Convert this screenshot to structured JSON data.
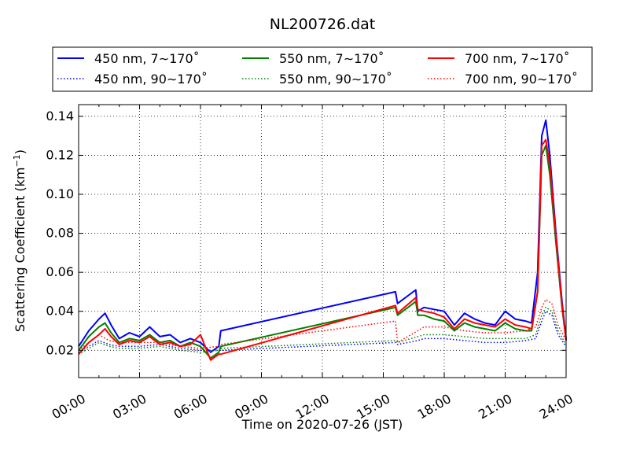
{
  "chart_data": {
    "type": "line",
    "title": "NL200726.dat",
    "xlabel": "Time on 2020-07-26 (JST)",
    "ylabel_main": "Scattering Coefficient (km",
    "ylabel_sup": "−1",
    "ylabel_end": ")",
    "xlim": [
      0,
      24
    ],
    "ylim": [
      0.006,
      0.146
    ],
    "xticks": [
      0,
      3,
      6,
      9,
      12,
      15,
      18,
      21,
      24
    ],
    "xtick_labels": [
      "00:00",
      "03:00",
      "06:00",
      "09:00",
      "12:00",
      "15:00",
      "18:00",
      "21:00",
      "24:00"
    ],
    "yticks": [
      0.02,
      0.04,
      0.06,
      0.08,
      0.1,
      0.12,
      0.14
    ],
    "ytick_labels": [
      "0.02",
      "0.04",
      "0.06",
      "0.08",
      "0.10",
      "0.12",
      "0.14"
    ],
    "grid": true,
    "legend_position": "top, above plot, 3 columns",
    "series": [
      {
        "name": "450 nm, 7∼170˚",
        "color": "#0000ff",
        "style": "solid",
        "x": [
          0,
          0.5,
          1,
          1.3,
          1.6,
          2,
          2.5,
          3,
          3.5,
          4,
          4.5,
          5,
          5.5,
          6,
          6.5,
          6.9,
          7,
          15.6,
          15.7,
          16.6,
          16.7,
          17,
          17.5,
          18,
          18.5,
          19,
          19.5,
          20,
          20.5,
          21,
          21.5,
          22,
          22.3,
          22.6,
          22.8,
          23,
          23.2,
          23.5,
          23.8,
          24
        ],
        "y": [
          0.022,
          0.03,
          0.036,
          0.039,
          0.033,
          0.026,
          0.029,
          0.027,
          0.032,
          0.027,
          0.028,
          0.024,
          0.026,
          0.024,
          0.019,
          0.022,
          0.03,
          0.05,
          0.044,
          0.051,
          0.04,
          0.042,
          0.041,
          0.04,
          0.033,
          0.039,
          0.036,
          0.034,
          0.033,
          0.04,
          0.036,
          0.035,
          0.034,
          0.06,
          0.13,
          0.138,
          0.12,
          0.08,
          0.045,
          0.026
        ]
      },
      {
        "name": "450 nm, 90∼170˚",
        "color": "#0000ff",
        "style": "dotted",
        "x": [
          0,
          0.5,
          1,
          1.5,
          2,
          3,
          4,
          5,
          6,
          6.9,
          7,
          15.6,
          15.7,
          16.7,
          17,
          18,
          19,
          20,
          21,
          22,
          22.5,
          22.8,
          23,
          23.3,
          23.6,
          24
        ],
        "y": [
          0.019,
          0.022,
          0.025,
          0.023,
          0.022,
          0.022,
          0.023,
          0.021,
          0.02,
          0.02,
          0.02,
          0.024,
          0.023,
          0.025,
          0.026,
          0.026,
          0.025,
          0.024,
          0.024,
          0.025,
          0.026,
          0.035,
          0.04,
          0.038,
          0.028,
          0.022
        ]
      },
      {
        "name": "550 nm, 7∼170˚",
        "color": "#008000",
        "style": "solid",
        "x": [
          0,
          0.5,
          1,
          1.3,
          1.6,
          2,
          2.5,
          3,
          3.5,
          4,
          4.5,
          5,
          5.5,
          6,
          6.5,
          6.9,
          7,
          15.6,
          15.7,
          16.6,
          16.7,
          17,
          17.5,
          18,
          18.5,
          19,
          19.5,
          20,
          20.5,
          21,
          21.5,
          22,
          22.3,
          22.6,
          22.8,
          23,
          23.2,
          23.5,
          23.8,
          24
        ],
        "y": [
          0.02,
          0.027,
          0.032,
          0.034,
          0.029,
          0.024,
          0.026,
          0.025,
          0.028,
          0.024,
          0.025,
          0.022,
          0.024,
          0.022,
          0.016,
          0.019,
          0.022,
          0.042,
          0.038,
          0.045,
          0.038,
          0.038,
          0.036,
          0.035,
          0.03,
          0.034,
          0.032,
          0.031,
          0.03,
          0.034,
          0.031,
          0.03,
          0.03,
          0.05,
          0.12,
          0.125,
          0.11,
          0.075,
          0.042,
          0.025
        ]
      },
      {
        "name": "550 nm, 90∼170˚",
        "color": "#008000",
        "style": "dotted",
        "x": [
          0,
          0.5,
          1,
          1.5,
          2,
          3,
          4,
          5,
          6,
          6.9,
          7,
          15.6,
          15.7,
          16.7,
          17,
          18,
          19,
          20,
          21,
          22,
          22.5,
          22.8,
          23,
          23.3,
          23.6,
          24
        ],
        "y": [
          0.018,
          0.021,
          0.024,
          0.022,
          0.021,
          0.021,
          0.022,
          0.02,
          0.019,
          0.02,
          0.021,
          0.025,
          0.024,
          0.027,
          0.028,
          0.028,
          0.027,
          0.026,
          0.026,
          0.026,
          0.028,
          0.038,
          0.042,
          0.04,
          0.03,
          0.023
        ]
      },
      {
        "name": "700 nm, 7∼170˚",
        "color": "#ff0000",
        "style": "solid",
        "x": [
          0,
          0.5,
          1,
          1.3,
          1.6,
          2,
          2.5,
          3,
          3.5,
          4,
          4.5,
          5,
          5.5,
          6,
          6.5,
          6.9,
          7,
          15.6,
          15.7,
          16.6,
          16.7,
          17,
          17.5,
          18,
          18.5,
          19,
          19.5,
          20,
          20.5,
          21,
          21.5,
          22,
          22.3,
          22.6,
          22.8,
          23,
          23.2,
          23.5,
          23.8,
          24
        ],
        "y": [
          0.018,
          0.024,
          0.028,
          0.031,
          0.027,
          0.023,
          0.025,
          0.024,
          0.027,
          0.023,
          0.024,
          0.022,
          0.023,
          0.028,
          0.015,
          0.018,
          0.018,
          0.043,
          0.039,
          0.047,
          0.041,
          0.04,
          0.039,
          0.037,
          0.031,
          0.036,
          0.034,
          0.033,
          0.032,
          0.036,
          0.033,
          0.032,
          0.031,
          0.05,
          0.125,
          0.128,
          0.115,
          0.078,
          0.043,
          0.025
        ]
      },
      {
        "name": "700 nm, 90∼170˚",
        "color": "#ff0000",
        "style": "dotted",
        "x": [
          0,
          0.5,
          1,
          1.5,
          2,
          3,
          4,
          5,
          6,
          6.9,
          7,
          15.6,
          15.7,
          16.7,
          17,
          18,
          19,
          20,
          21,
          22,
          22.5,
          22.8,
          23,
          23.3,
          23.6,
          24
        ],
        "y": [
          0.02,
          0.024,
          0.028,
          0.025,
          0.024,
          0.024,
          0.024,
          0.022,
          0.021,
          0.022,
          0.023,
          0.035,
          0.024,
          0.03,
          0.032,
          0.032,
          0.03,
          0.029,
          0.029,
          0.03,
          0.032,
          0.042,
          0.046,
          0.044,
          0.033,
          0.025
        ]
      }
    ]
  }
}
